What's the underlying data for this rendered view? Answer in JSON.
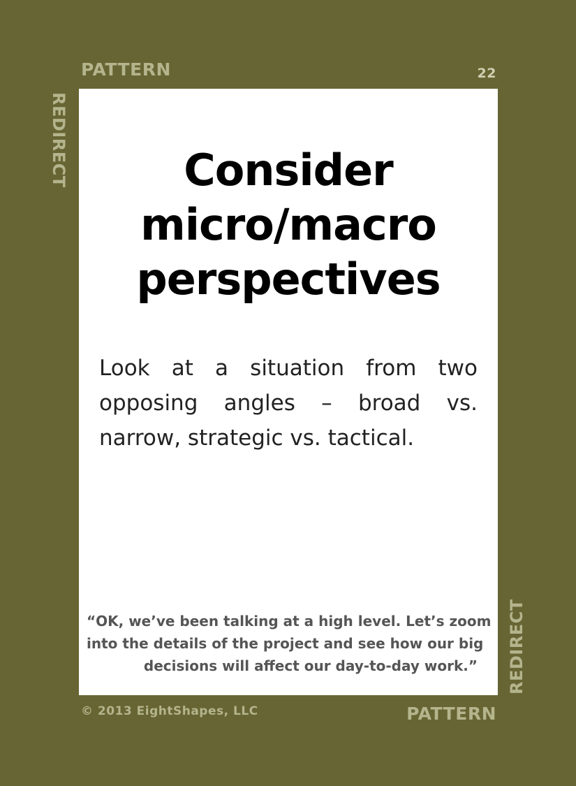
{
  "card": {
    "category": "PATTERN",
    "number": "22",
    "group": "REDIRECT",
    "title_lines": [
      "Consider",
      "micro/macro",
      "perspectives"
    ],
    "description_lines": [
      "Look at a situation from two",
      "opposing angles – broad vs.",
      "narrow, strategic vs. tactical."
    ],
    "quote_lines": [
      "“OK, we’ve been talking at a high level. Let’s zoom",
      "into the details of the project and see how our big",
      "decisions will affect our day-to-day work.”"
    ],
    "copyright": "© 2013 EightShapes, LLC"
  },
  "colors": {
    "frame": "#676533",
    "card": "#ffffff",
    "label": "#b4b48d"
  }
}
